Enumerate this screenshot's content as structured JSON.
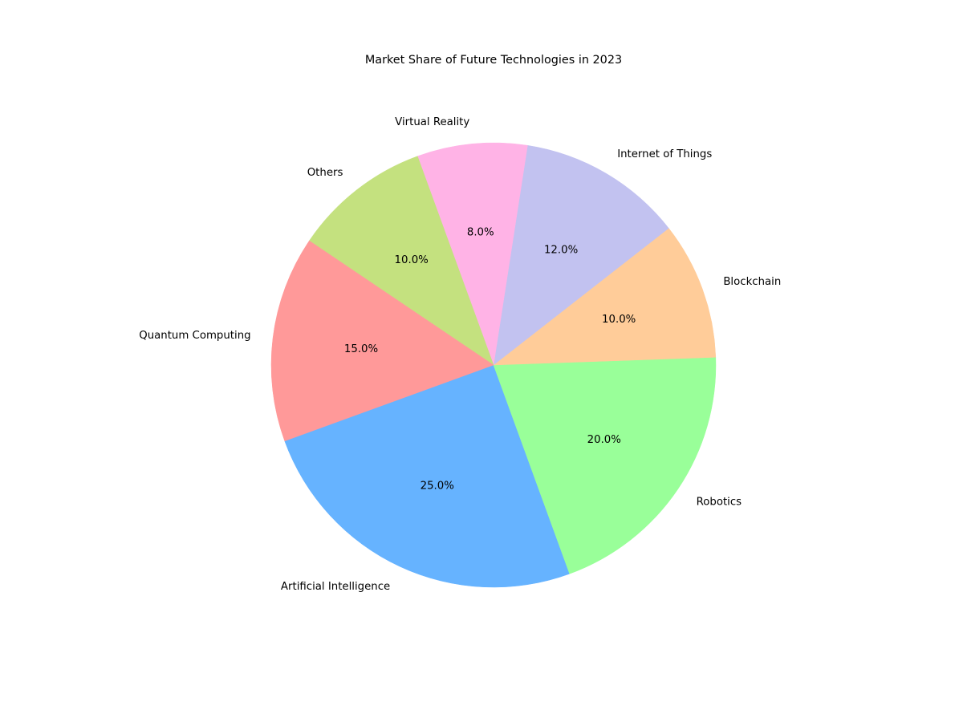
{
  "chart_data": {
    "type": "pie",
    "title": "Market Share of Future Technologies in 2023",
    "categories": [
      "Artificial Intelligence",
      "Robotics",
      "Blockchain",
      "Internet of Things",
      "Virtual Reality",
      "Others",
      "Quantum Computing"
    ],
    "values": [
      25.0,
      20.0,
      10.0,
      12.0,
      8.0,
      10.0,
      15.0
    ],
    "percent_labels": [
      "25.0%",
      "20.0%",
      "10.0%",
      "12.0%",
      "8.0%",
      "10.0%",
      "15.0%"
    ],
    "colors": [
      "#66b3ff",
      "#99ff99",
      "#ffcc99",
      "#c2c2f0",
      "#ffb3e6",
      "#c4e17f",
      "#ff9999"
    ],
    "start_angle_deg": 200,
    "direction": "counterclockwise",
    "legend": "none",
    "grid": false
  }
}
